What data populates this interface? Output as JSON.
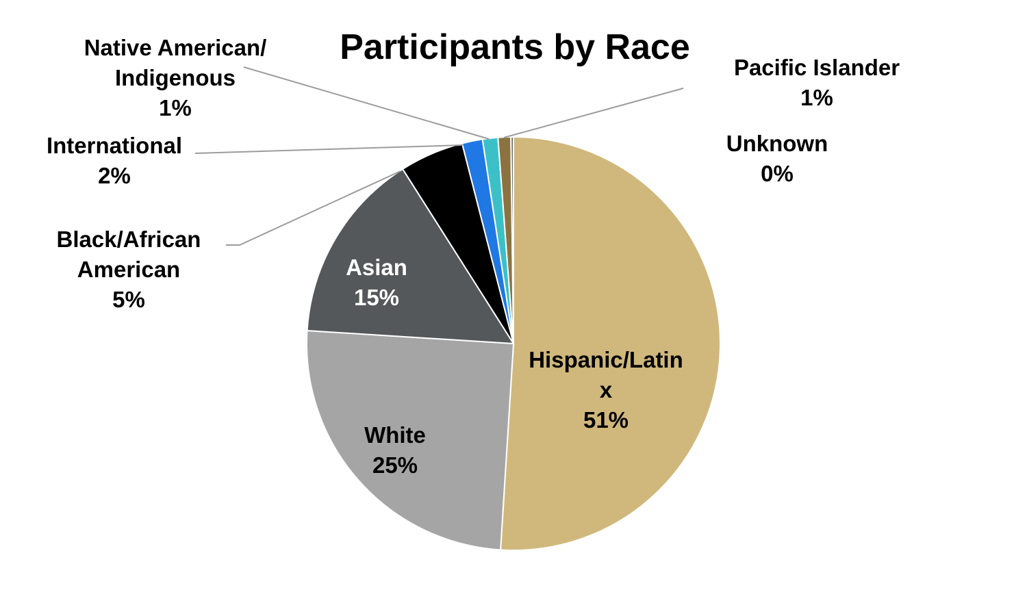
{
  "chart_data": {
    "type": "pie",
    "title": "Participants by Race",
    "slices": [
      {
        "label": "Hispanic/Latinx",
        "label_lines": [
          "Hispanic/Latin",
          "x"
        ],
        "value": 51,
        "value_label": "51%",
        "color": "#d0b87c",
        "text_color": "#000000"
      },
      {
        "label": "White",
        "label_lines": [
          "White"
        ],
        "value": 25,
        "value_label": "25%",
        "color": "#a5a5a5",
        "text_color": "#000000"
      },
      {
        "label": "Asian",
        "label_lines": [
          "Asian"
        ],
        "value": 15,
        "value_label": "15%",
        "color": "#55585a",
        "text_color": "#ffffff"
      },
      {
        "label": "Black/African American",
        "label_lines": [
          "Black/African",
          "American"
        ],
        "value": 5,
        "value_label": "5%",
        "color": "#000000",
        "text_color": "#000000"
      },
      {
        "label": "International",
        "label_lines": [
          "International"
        ],
        "value": 1.6,
        "value_label": "2%",
        "color": "#1f78e4",
        "text_color": "#000000"
      },
      {
        "label": "Native American/ Indigenous",
        "label_lines": [
          "Native American/",
          "Indigenous"
        ],
        "value": 1.2,
        "value_label": "1%",
        "color": "#3cc0c8",
        "text_color": "#000000"
      },
      {
        "label": "Pacific Islander",
        "label_lines": [
          "Pacific Islander"
        ],
        "value": 1.0,
        "value_label": "1%",
        "color": "#8a7340",
        "text_color": "#000000"
      },
      {
        "label": "Unknown",
        "label_lines": [
          "Unknown"
        ],
        "value": 0.2,
        "value_label": "0%",
        "color": "#6d6d6d",
        "text_color": "#000000"
      }
    ]
  }
}
